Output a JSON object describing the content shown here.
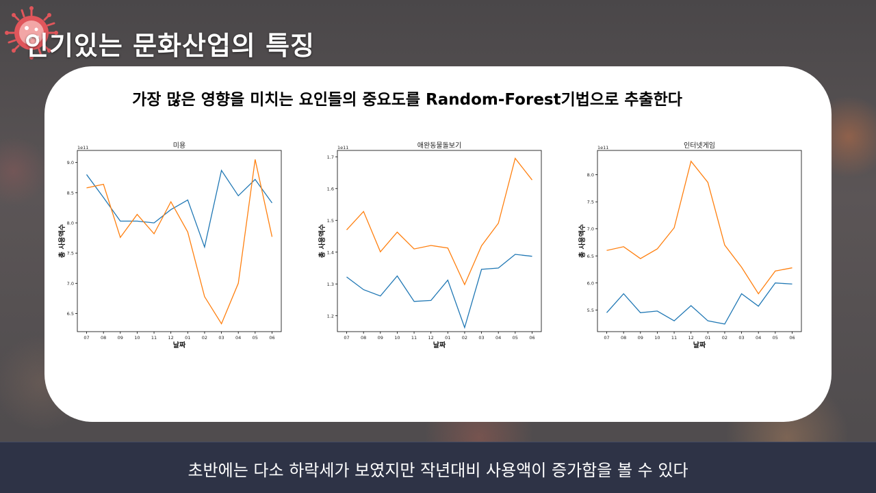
{
  "slide": {
    "title": "인기있는 문화산업의 특징",
    "subtitle": "가장 많은 영향을 미치는 요인들의 중요도를 Random-Forest기법으로 추출한다",
    "footer": "초반에는 다소 하락세가 보였지만 작년대비 사용액이 증가함을 볼 수 있다"
  },
  "colors": {
    "series_blue": "#1f77b4",
    "series_orange": "#ff7f0e",
    "footer_bg": "#2e3346"
  },
  "icons": {
    "logo": "virus-icon"
  },
  "chart_data": [
    {
      "type": "line",
      "title": "미용",
      "xlabel": "날짜",
      "ylabel": "총 사용액수",
      "offset_label": "1e11",
      "categories": [
        "07",
        "08",
        "09",
        "10",
        "11",
        "12",
        "01",
        "02",
        "03",
        "04",
        "05",
        "06"
      ],
      "ylim": [
        6.2,
        9.2
      ],
      "yticks": [
        6.5,
        7.0,
        7.5,
        8.0,
        8.5,
        9.0
      ],
      "series": [
        {
          "color": "#1f77b4",
          "values": [
            8.8,
            8.42,
            8.03,
            8.03,
            8.0,
            8.22,
            8.38,
            7.6,
            8.87,
            8.45,
            8.72,
            8.33
          ]
        },
        {
          "color": "#ff7f0e",
          "values": [
            8.58,
            8.64,
            7.76,
            8.14,
            7.82,
            8.35,
            7.85,
            6.78,
            6.33,
            7.0,
            9.05,
            7.77
          ]
        }
      ]
    },
    {
      "type": "line",
      "title": "애완동물돌보기",
      "xlabel": "날짜",
      "ylabel": "총 사용액수",
      "offset_label": "1e11",
      "categories": [
        "07",
        "08",
        "09",
        "10",
        "11",
        "12",
        "01",
        "02",
        "03",
        "04",
        "05",
        "06"
      ],
      "ylim": [
        1.15,
        1.72
      ],
      "yticks": [
        1.2,
        1.3,
        1.4,
        1.5,
        1.6,
        1.7
      ],
      "series": [
        {
          "color": "#1f77b4",
          "values": [
            1.322,
            1.282,
            1.262,
            1.325,
            1.245,
            1.248,
            1.312,
            1.163,
            1.346,
            1.35,
            1.393,
            1.387
          ]
        },
        {
          "color": "#ff7f0e",
          "values": [
            1.47,
            1.528,
            1.401,
            1.463,
            1.41,
            1.421,
            1.413,
            1.298,
            1.42,
            1.491,
            1.695,
            1.627
          ]
        }
      ]
    },
    {
      "type": "line",
      "title": "인터넷게임",
      "xlabel": "날짜",
      "ylabel": "총 사용액수",
      "offset_label": "1e11",
      "categories": [
        "07",
        "08",
        "09",
        "10",
        "11",
        "12",
        "01",
        "02",
        "03",
        "04",
        "05",
        "06"
      ],
      "ylim": [
        5.1,
        8.45
      ],
      "yticks": [
        5.5,
        6.0,
        6.5,
        7.0,
        7.5,
        8.0
      ],
      "series": [
        {
          "color": "#1f77b4",
          "values": [
            5.45,
            5.8,
            5.45,
            5.48,
            5.3,
            5.58,
            5.3,
            5.24,
            5.8,
            5.57,
            6.0,
            5.98
          ]
        },
        {
          "color": "#ff7f0e",
          "values": [
            6.6,
            6.67,
            6.45,
            6.63,
            7.02,
            8.25,
            7.86,
            6.7,
            6.29,
            5.8,
            6.22,
            6.28
          ]
        }
      ]
    }
  ]
}
